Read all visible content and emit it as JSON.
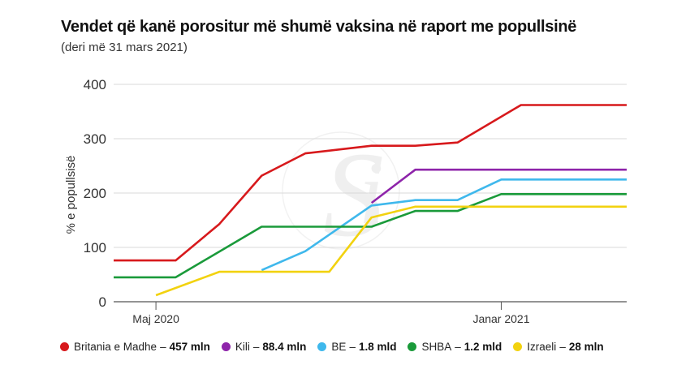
{
  "header": {
    "title": "Vendet që kanë porositur më shumë vaksina në raport me popullsinë",
    "subtitle": "(deri më 31 mars 2021)"
  },
  "chart_data": {
    "type": "line",
    "title": "Vendet që kanë porositur më shumë vaksina në raport me popullsinë",
    "subtitle": "(deri më 31 mars 2021)",
    "xlabel": "",
    "ylabel": "% e popullsisë",
    "ylim": [
      0,
      400
    ],
    "yticks": [
      0,
      100,
      200,
      300,
      400
    ],
    "xticks": [
      {
        "label": "Maj 2020",
        "date": "2020-05-01"
      },
      {
        "label": "Janar 2021",
        "date": "2021-01-01"
      }
    ],
    "xrange": [
      "2020-04-01",
      "2021-03-31"
    ],
    "grid": true,
    "legend_position": "bottom",
    "series": [
      {
        "name": "Britania e Madhe",
        "legend_value": "457 mln",
        "color": "#d7191c",
        "points": [
          [
            "2020-04-01",
            76
          ],
          [
            "2020-05-15",
            76
          ],
          [
            "2020-06-15",
            143
          ],
          [
            "2020-07-15",
            232
          ],
          [
            "2020-08-15",
            273
          ],
          [
            "2020-10-01",
            287
          ],
          [
            "2020-11-01",
            287
          ],
          [
            "2020-12-01",
            293
          ],
          [
            "2021-01-15",
            362
          ],
          [
            "2021-03-31",
            362
          ]
        ]
      },
      {
        "name": "Kili",
        "legend_value": "88.4 mln",
        "color": "#8e24aa",
        "points": [
          [
            "2020-10-01",
            182
          ],
          [
            "2020-11-01",
            243
          ],
          [
            "2021-03-31",
            243
          ]
        ]
      },
      {
        "name": "BE",
        "legend_value": "1.8 mld",
        "color": "#3fb8ec",
        "points": [
          [
            "2020-07-15",
            58
          ],
          [
            "2020-08-15",
            93
          ],
          [
            "2020-10-01",
            177
          ],
          [
            "2020-11-01",
            187
          ],
          [
            "2020-12-01",
            187
          ],
          [
            "2021-01-01",
            225
          ],
          [
            "2021-03-31",
            225
          ]
        ]
      },
      {
        "name": "SHBA",
        "legend_value": "1.2 mld",
        "color": "#1a9a3a",
        "points": [
          [
            "2020-04-01",
            45
          ],
          [
            "2020-05-15",
            45
          ],
          [
            "2020-07-15",
            138
          ],
          [
            "2020-10-01",
            138
          ],
          [
            "2020-11-01",
            167
          ],
          [
            "2020-12-01",
            167
          ],
          [
            "2021-01-01",
            198
          ],
          [
            "2021-03-31",
            198
          ]
        ]
      },
      {
        "name": "Izraeli",
        "legend_value": "28 mln",
        "color": "#f2d20f",
        "points": [
          [
            "2020-05-01",
            12
          ],
          [
            "2020-06-15",
            55
          ],
          [
            "2020-09-01",
            55
          ],
          [
            "2020-10-01",
            155
          ],
          [
            "2020-11-01",
            175
          ],
          [
            "2021-03-31",
            175
          ]
        ]
      }
    ]
  }
}
